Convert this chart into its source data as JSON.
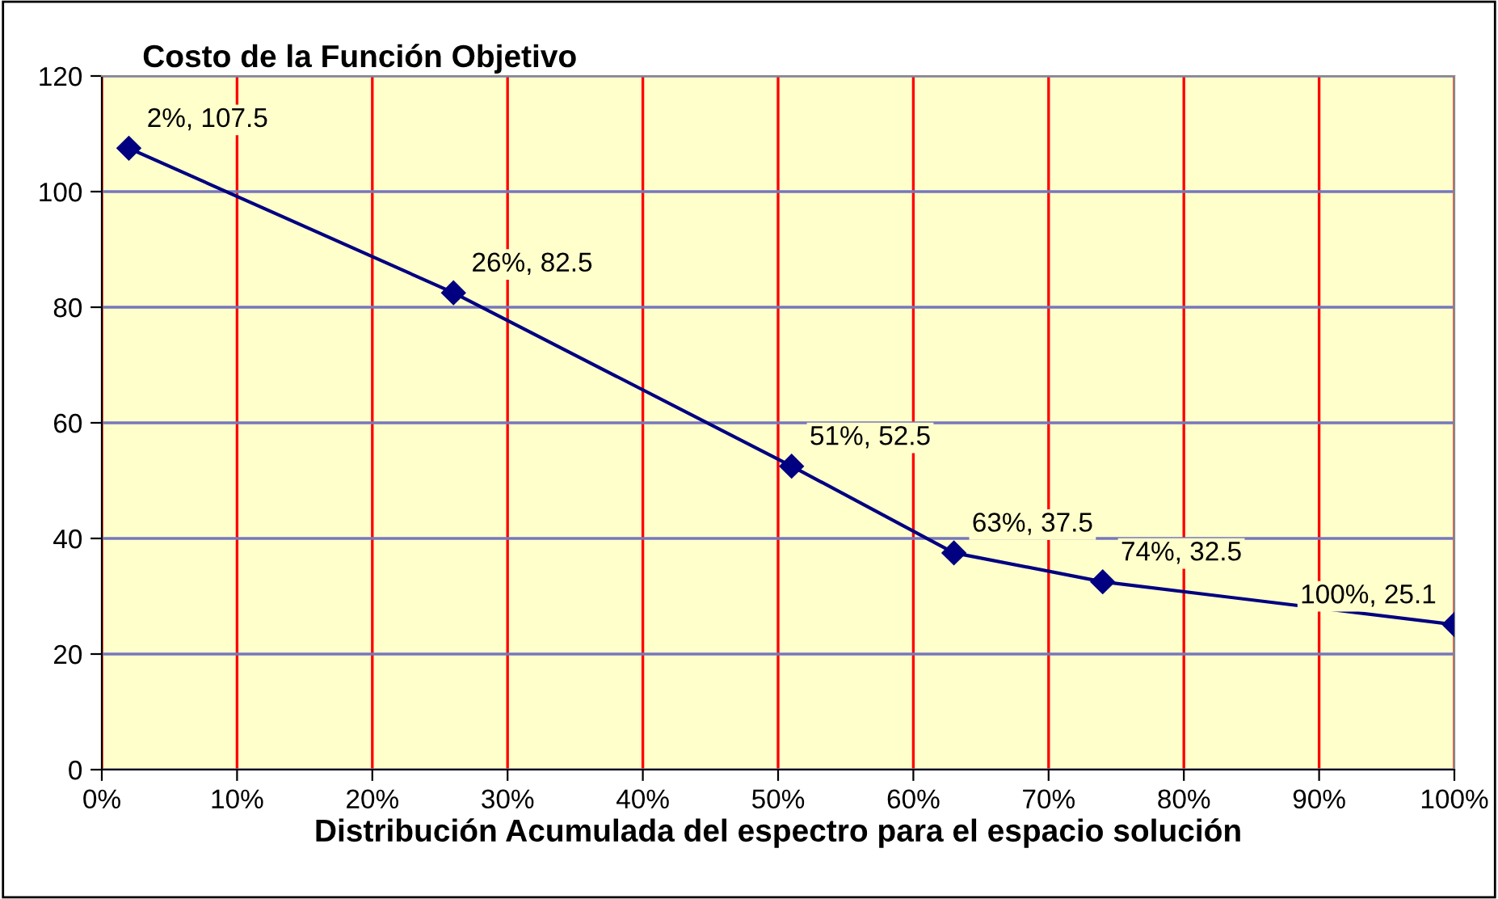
{
  "chart_data": {
    "type": "line",
    "title": "Costo de la Función Objetivo",
    "xlabel": "Distribución Acumulada del espectro para el espacio solución",
    "x": [
      2,
      26,
      51,
      63,
      74,
      100
    ],
    "series": [
      {
        "color": "#000080",
        "values": [
          107.5,
          82.5,
          52.5,
          37.5,
          32.5,
          25.1
        ],
        "value_labels": [
          "2%, 107.5",
          "26%, 82.5",
          "51%, 52.5",
          "63%, 37.5",
          "74%, 32.5",
          "100%, 25.1"
        ]
      }
    ],
    "xlim": [
      0,
      100
    ],
    "xticks": [
      {
        "value": 0,
        "label": "0%"
      },
      {
        "value": 10,
        "label": "10%"
      },
      {
        "value": 20,
        "label": "20%"
      },
      {
        "value": 30,
        "label": "30%"
      },
      {
        "value": 40,
        "label": "40%"
      },
      {
        "value": 50,
        "label": "50%"
      },
      {
        "value": 60,
        "label": "60%"
      },
      {
        "value": 70,
        "label": "70%"
      },
      {
        "value": 80,
        "label": "80%"
      },
      {
        "value": 90,
        "label": "90%"
      },
      {
        "value": 100,
        "label": "100%"
      }
    ],
    "ylim": [
      0,
      120
    ],
    "yticks": [
      0,
      20,
      40,
      60,
      80,
      100,
      120
    ],
    "grid": true,
    "marker": "diamond",
    "line_style": "solid"
  }
}
